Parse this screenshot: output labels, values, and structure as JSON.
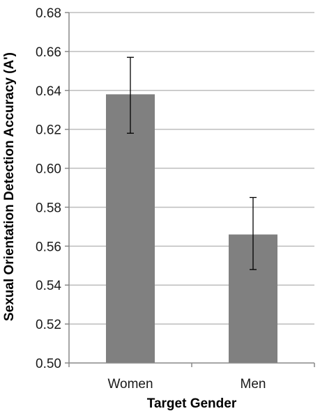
{
  "chart_data": {
    "type": "bar",
    "title": "",
    "xlabel": "Target Gender",
    "ylabel": "Sexual Orientation Detection Accuracy (A')",
    "categories": [
      "Women",
      "Men"
    ],
    "values": [
      0.638,
      0.566
    ],
    "error_low": [
      0.618,
      0.548
    ],
    "error_high": [
      0.657,
      0.585
    ],
    "ylim": [
      0.5,
      0.68
    ],
    "yticks": [
      "0.50",
      "0.52",
      "0.54",
      "0.56",
      "0.58",
      "0.60",
      "0.62",
      "0.64",
      "0.66",
      "0.68"
    ],
    "grid": true,
    "bar_color": "#808080",
    "grid_color": "#bdbdbd"
  }
}
